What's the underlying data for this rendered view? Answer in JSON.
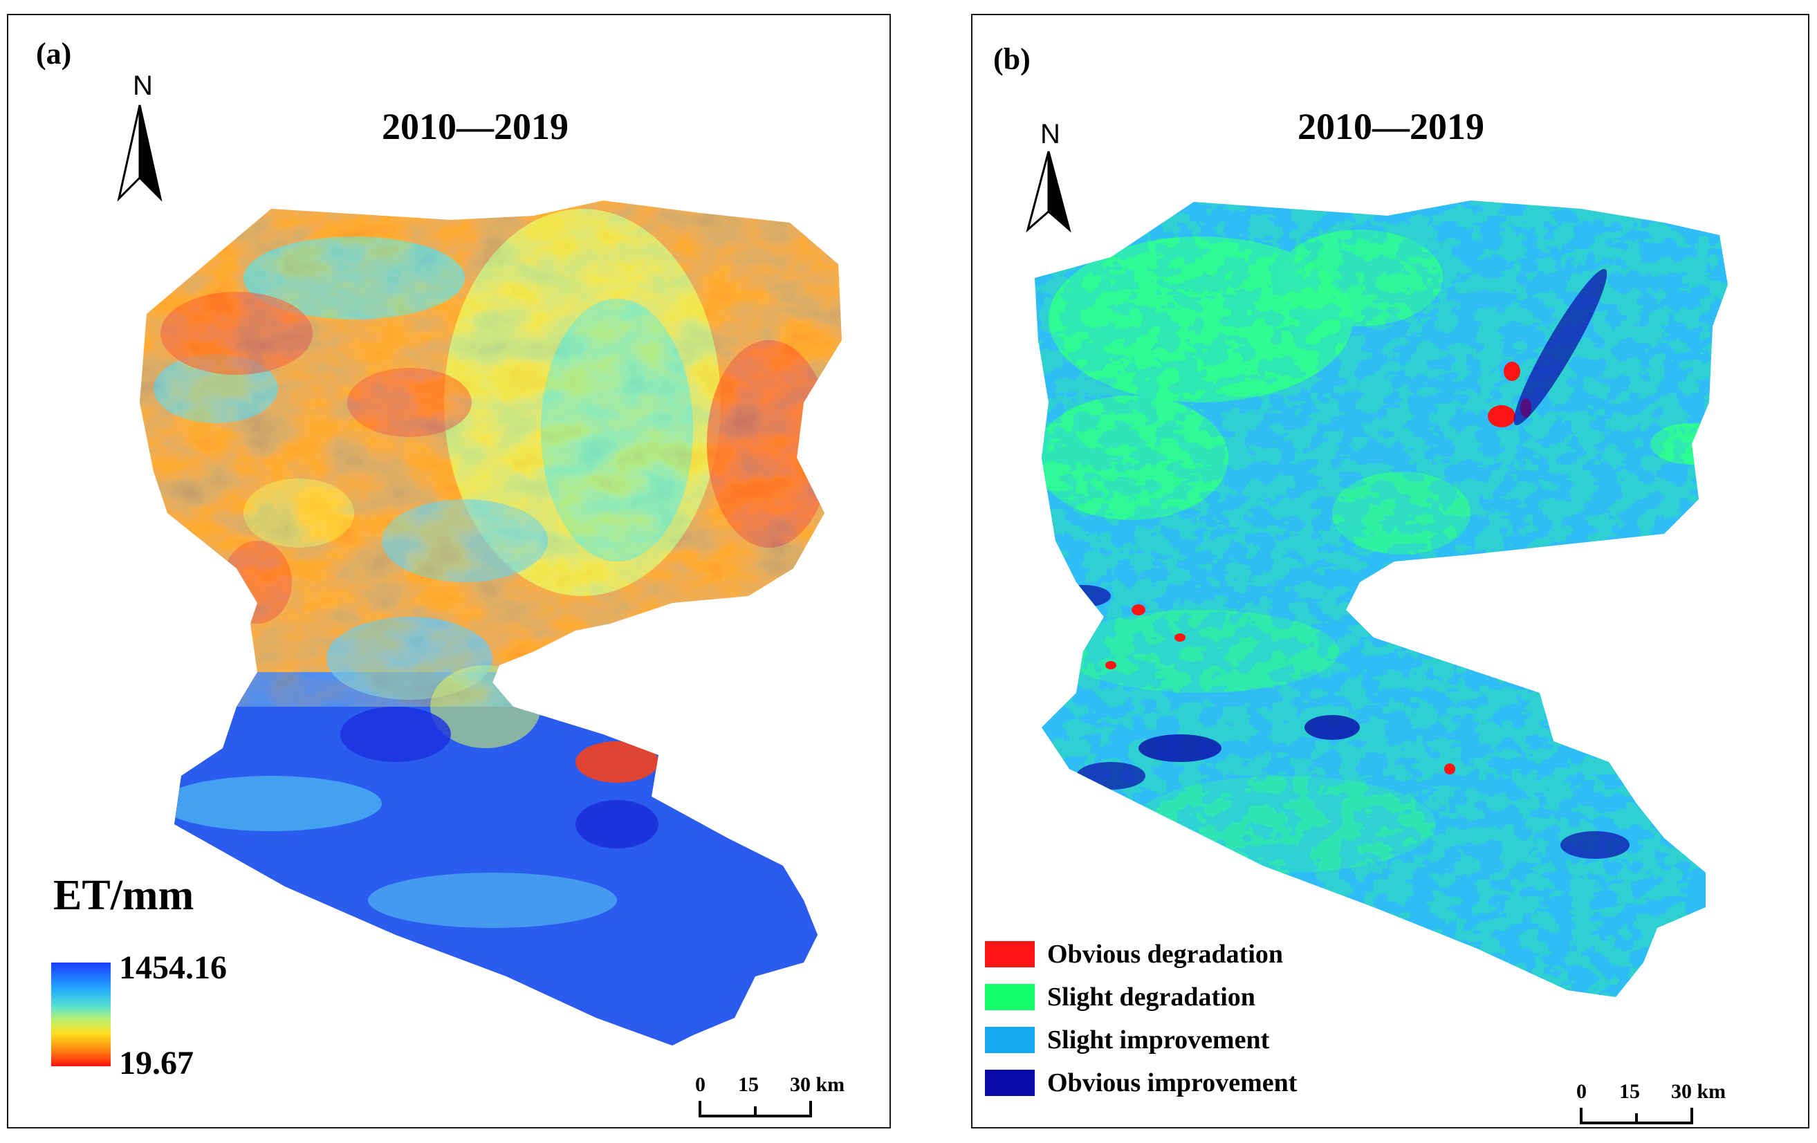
{
  "panel_a": {
    "label": "(a)",
    "title": "2010—2019",
    "north": "N",
    "legend_title": "ET/mm",
    "legend_max": "1454.16",
    "legend_min": "19.67",
    "scale": {
      "t0": "0",
      "t1": "15",
      "t2": "30 km"
    }
  },
  "panel_b": {
    "label": "(b)",
    "title": "2010—2019",
    "north": "N",
    "legend": [
      {
        "label": "Obvious degradation",
        "color": "#ff1414"
      },
      {
        "label": "Slight degradation",
        "color": "#14ff6e"
      },
      {
        "label": "Slight improvement",
        "color": "#14a8f0"
      },
      {
        "label": "Obvious improvement",
        "color": "#0a0aa8"
      }
    ],
    "scale": {
      "t0": "0",
      "t1": "15",
      "t2": "30 km"
    }
  },
  "colors": {
    "et_low": "#ff1010",
    "et_mid": "#ffe020",
    "et_cyan": "#40e0d0",
    "et_high": "#1b3cff",
    "obvious_degradation": "#ff1414",
    "slight_degradation": "#14ff6e",
    "slight_improvement": "#14a8f0",
    "obvious_improvement": "#0a0aa8"
  }
}
